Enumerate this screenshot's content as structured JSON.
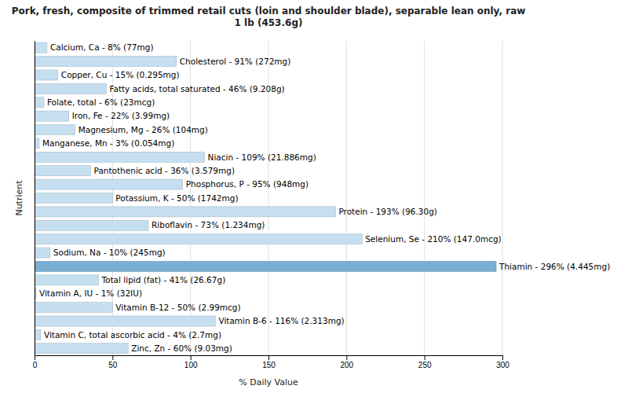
{
  "chart_data": {
    "type": "bar",
    "orientation": "horizontal",
    "title": "Pork, fresh, composite of trimmed retail cuts (loin and shoulder blade), separable lean only, raw\n1 lb (453.6g)",
    "xlabel": "% Daily Value",
    "ylabel": "Nutrient",
    "categories": [
      "Calcium, Ca - 8% (77mg)",
      "Cholesterol - 91% (272mg)",
      "Copper, Cu - 15% (0.295mg)",
      "Fatty acids, total saturated - 46% (9.208g)",
      "Folate, total - 6% (23mcg)",
      "Iron, Fe - 22% (3.99mg)",
      "Magnesium, Mg - 26% (104mg)",
      "Manganese, Mn - 3% (0.054mg)",
      "Niacin - 109% (21.886mg)",
      "Pantothenic acid - 36% (3.579mg)",
      "Phosphorus, P - 95% (948mg)",
      "Potassium, K - 50% (1742mg)",
      "Protein - 193% (96.30g)",
      "Riboflavin - 73% (1.234mg)",
      "Selenium, Se - 210% (147.0mcg)",
      "Sodium, Na - 10% (245mg)",
      "Thiamin - 296% (4.445mg)",
      "Total lipid (fat) - 41% (26.67g)",
      "Vitamin A, IU - 1% (32IU)",
      "Vitamin B-12 - 50% (2.99mcg)",
      "Vitamin B-6 - 116% (2.313mg)",
      "Vitamin C, total ascorbic acid - 4% (2.7mg)",
      "Zinc, Zn - 60% (9.03mg)"
    ],
    "values": [
      8,
      91,
      15,
      46,
      6,
      22,
      26,
      3,
      109,
      36,
      95,
      50,
      193,
      73,
      210,
      10,
      296,
      41,
      1,
      50,
      116,
      4,
      60
    ],
    "colors": [
      "#c5dff0",
      "#c5dff0",
      "#c5dff0",
      "#c5dff0",
      "#c5dff0",
      "#c5dff0",
      "#c5dff0",
      "#c5dff0",
      "#c5dff0",
      "#c5dff0",
      "#c5dff0",
      "#c5dff0",
      "#c5dff0",
      "#c5dff0",
      "#c5dff0",
      "#c5dff0",
      "#7aafd4",
      "#c5dff0",
      "#c5dff0",
      "#c5dff0",
      "#c5dff0",
      "#c5dff0",
      "#c5dff0"
    ],
    "xlim": [
      0,
      300
    ],
    "xticks": [
      0,
      50,
      100,
      150,
      200,
      250,
      300
    ],
    "grid": true,
    "tick_labels": "x"
  }
}
